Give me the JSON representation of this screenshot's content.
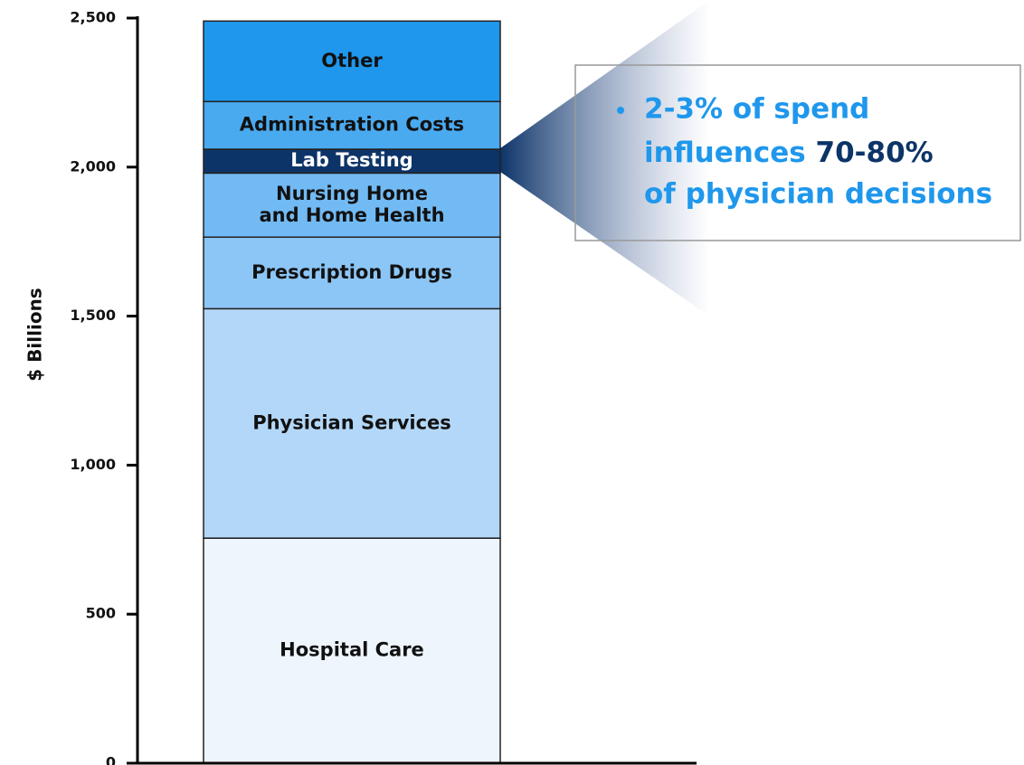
{
  "chart_data": {
    "type": "stacked_bar",
    "y_label": "$ Billions",
    "ylim": [
      0,
      2500
    ],
    "yticks": [
      0,
      500,
      {
        "value": 1000,
        "label": "1,000"
      },
      {
        "value": 1500,
        "label": "1,500"
      },
      {
        "value": 2000,
        "label": "2,000"
      },
      {
        "value": 2500,
        "label": "2,500"
      }
    ],
    "series": [
      {
        "name": "Hospital Care",
        "color": "#eef5fd",
        "values": [
          755
        ]
      },
      {
        "name": "Physician Services",
        "color": "#b3d7f8",
        "values": [
          770
        ]
      },
      {
        "name": "Prescription Drugs",
        "color": "#8cc6f6",
        "values": [
          240
        ]
      },
      {
        "name": "Nursing Home\nand Home Health",
        "color": "#72baf4",
        "values": [
          215
        ]
      },
      {
        "name": "Lab Testing",
        "color": "#0d3468",
        "values": [
          80
        ]
      },
      {
        "name": "Administration Costs",
        "color": "#4aaaf0",
        "values": [
          160
        ]
      },
      {
        "name": "Other",
        "color": "#1f97ec",
        "values": [
          270
        ]
      }
    ],
    "annotation": {
      "line1": "2-3% of spend",
      "line2_a": "influences",
      "line2_b": "70-80%",
      "line3": "of physician decisions"
    }
  }
}
